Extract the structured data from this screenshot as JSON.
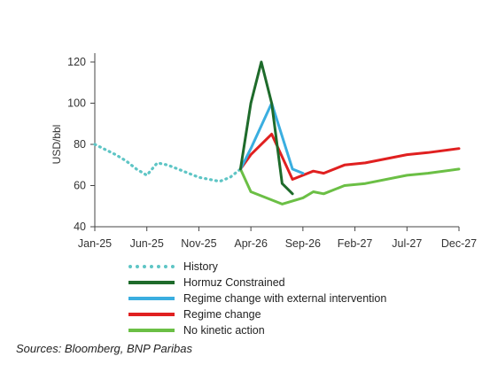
{
  "chart_data": {
    "type": "line",
    "ylabel": "USD/bbl",
    "ylim": [
      40,
      125
    ],
    "yticks": [
      40,
      60,
      80,
      100,
      120
    ],
    "x_tick_labels": [
      "Jan-25",
      "Jun-25",
      "Nov-25",
      "Apr-26",
      "Sep-26",
      "Feb-27",
      "Jul-27",
      "Dec-27"
    ],
    "x_range": [
      "Jan-25",
      "Dec-27"
    ],
    "grid": false,
    "legend_position": "bottom",
    "series": [
      {
        "name": "History",
        "color": "#5ec5c5",
        "style": "dotted",
        "points": [
          [
            "Jan-25",
            80
          ],
          [
            "Mar-25",
            75
          ],
          [
            "Apr-25",
            72
          ],
          [
            "May-25",
            68
          ],
          [
            "Jun-25",
            65
          ],
          [
            "Jul-25",
            71
          ],
          [
            "Aug-25",
            70
          ],
          [
            "Sep-25",
            68
          ],
          [
            "Oct-25",
            66
          ],
          [
            "Nov-25",
            64
          ],
          [
            "Jan-26",
            62
          ],
          [
            "Feb-26",
            64
          ],
          [
            "Mar-26",
            68
          ]
        ]
      },
      {
        "name": "Hormuz Constrained",
        "color": "#1e6b2b",
        "style": "solid",
        "points": [
          [
            "Mar-26",
            68
          ],
          [
            "Apr-26",
            100
          ],
          [
            "May-26",
            120
          ],
          [
            "Jun-26",
            100
          ],
          [
            "Jul-26",
            61
          ],
          [
            "Aug-26",
            56
          ]
        ]
      },
      {
        "name": "Regime change with external intervention",
        "color": "#3aaee0",
        "style": "solid",
        "points": [
          [
            "Mar-26",
            68
          ],
          [
            "Apr-26",
            78
          ],
          [
            "Jun-26",
            100
          ],
          [
            "Aug-26",
            68
          ],
          [
            "Sep-26",
            66
          ]
        ]
      },
      {
        "name": "Regime change",
        "color": "#e02020",
        "style": "solid",
        "points": [
          [
            "Mar-26",
            68
          ],
          [
            "Apr-26",
            75
          ],
          [
            "Jun-26",
            85
          ],
          [
            "Aug-26",
            63
          ],
          [
            "Oct-26",
            67
          ],
          [
            "Nov-26",
            66
          ],
          [
            "Jan-27",
            70
          ],
          [
            "Mar-27",
            71
          ],
          [
            "Jul-27",
            75
          ],
          [
            "Sep-27",
            76
          ],
          [
            "Dec-27",
            78
          ]
        ]
      },
      {
        "name": "No kinetic action",
        "color": "#6bbf45",
        "style": "solid",
        "points": [
          [
            "Mar-26",
            68
          ],
          [
            "Apr-26",
            57
          ],
          [
            "May-26",
            55
          ],
          [
            "Jul-26",
            51
          ],
          [
            "Sep-26",
            54
          ],
          [
            "Oct-26",
            57
          ],
          [
            "Nov-26",
            56
          ],
          [
            "Jan-27",
            60
          ],
          [
            "Mar-27",
            61
          ],
          [
            "Jul-27",
            65
          ],
          [
            "Sep-27",
            66
          ],
          [
            "Dec-27",
            68
          ]
        ]
      }
    ]
  },
  "source": "Sources: Bloomberg, BNP Paribas"
}
